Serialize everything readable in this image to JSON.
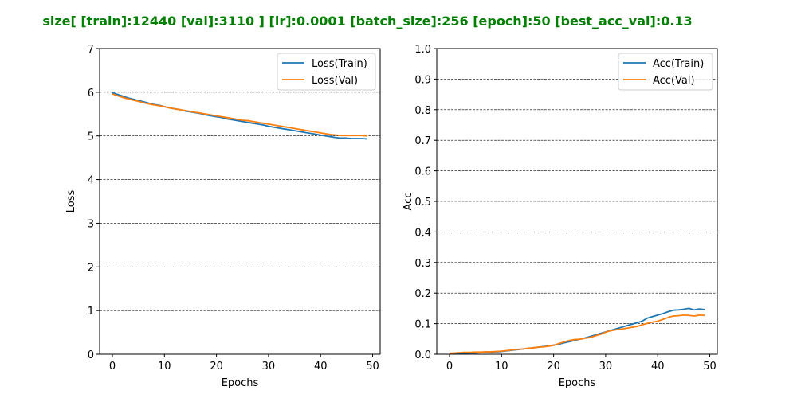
{
  "suptitle": "size[ [train]:12440  [val]:3110 ]  [lr]:0.0001  [batch_size]:256  [epoch]:50  [best_acc_val]:0.13",
  "colors": {
    "suptitle": "#008000",
    "train": "#1f77b4",
    "val": "#ff7f0e",
    "grid": "#000000"
  },
  "chart_data": [
    {
      "type": "line",
      "xlabel": "Epochs",
      "ylabel": "Loss",
      "xlim": [
        -2.45,
        51.45
      ],
      "ylim": [
        0,
        7
      ],
      "xticks": [
        0,
        10,
        20,
        30,
        40,
        50
      ],
      "yticks": [
        0,
        1,
        2,
        3,
        4,
        5,
        6,
        7
      ],
      "ytick_labels": [
        "0",
        "1",
        "2",
        "3",
        "4",
        "5",
        "6",
        "7"
      ],
      "grid": "y-dashed",
      "legend_position": "top-right",
      "x": [
        0,
        1,
        2,
        3,
        4,
        5,
        6,
        7,
        8,
        9,
        10,
        11,
        12,
        13,
        14,
        15,
        16,
        17,
        18,
        19,
        20,
        21,
        22,
        23,
        24,
        25,
        26,
        27,
        28,
        29,
        30,
        31,
        32,
        33,
        34,
        35,
        36,
        37,
        38,
        39,
        40,
        41,
        42,
        43,
        44,
        45,
        46,
        47,
        48,
        49
      ],
      "series": [
        {
          "name": "Loss(Train)",
          "color": "#1f77b4",
          "values": [
            5.99,
            5.95,
            5.91,
            5.87,
            5.84,
            5.81,
            5.78,
            5.75,
            5.72,
            5.7,
            5.67,
            5.64,
            5.62,
            5.6,
            5.57,
            5.55,
            5.53,
            5.51,
            5.48,
            5.46,
            5.44,
            5.42,
            5.39,
            5.37,
            5.35,
            5.33,
            5.31,
            5.29,
            5.27,
            5.25,
            5.22,
            5.2,
            5.18,
            5.16,
            5.14,
            5.12,
            5.1,
            5.08,
            5.06,
            5.04,
            5.02,
            5.0,
            4.98,
            4.96,
            4.95,
            4.95,
            4.94,
            4.94,
            4.94,
            4.93
          ]
        },
        {
          "name": "Loss(Val)",
          "color": "#ff7f0e",
          "values": [
            5.96,
            5.92,
            5.88,
            5.85,
            5.82,
            5.79,
            5.76,
            5.73,
            5.71,
            5.69,
            5.67,
            5.64,
            5.62,
            5.6,
            5.58,
            5.56,
            5.54,
            5.52,
            5.5,
            5.48,
            5.46,
            5.44,
            5.42,
            5.4,
            5.38,
            5.36,
            5.35,
            5.33,
            5.31,
            5.29,
            5.27,
            5.25,
            5.23,
            5.21,
            5.19,
            5.17,
            5.15,
            5.13,
            5.11,
            5.09,
            5.07,
            5.05,
            5.03,
            5.02,
            5.01,
            5.01,
            5.01,
            5.01,
            5.01,
            5.0
          ]
        }
      ]
    },
    {
      "type": "line",
      "xlabel": "Epochs",
      "ylabel": "Acc",
      "xlim": [
        -2.45,
        51.45
      ],
      "ylim": [
        0,
        1
      ],
      "xticks": [
        0,
        10,
        20,
        30,
        40,
        50
      ],
      "yticks": [
        0,
        0.1,
        0.2,
        0.3,
        0.4,
        0.5,
        0.6,
        0.7,
        0.8,
        0.9,
        1.0
      ],
      "ytick_labels": [
        "0.0",
        "0.1",
        "0.2",
        "0.3",
        "0.4",
        "0.5",
        "0.6",
        "0.7",
        "0.8",
        "0.9",
        "1.0"
      ],
      "grid": "y-dashed",
      "legend_position": "top-right",
      "x": [
        0,
        1,
        2,
        3,
        4,
        5,
        6,
        7,
        8,
        9,
        10,
        11,
        12,
        13,
        14,
        15,
        16,
        17,
        18,
        19,
        20,
        21,
        22,
        23,
        24,
        25,
        26,
        27,
        28,
        29,
        30,
        31,
        32,
        33,
        34,
        35,
        36,
        37,
        38,
        39,
        40,
        41,
        42,
        43,
        44,
        45,
        46,
        47,
        48,
        49
      ],
      "series": [
        {
          "name": "Acc(Train)",
          "color": "#1f77b4",
          "values": [
            0.001,
            0.002,
            0.003,
            0.003,
            0.004,
            0.004,
            0.005,
            0.006,
            0.007,
            0.008,
            0.009,
            0.011,
            0.013,
            0.015,
            0.017,
            0.019,
            0.021,
            0.023,
            0.025,
            0.027,
            0.03,
            0.033,
            0.037,
            0.041,
            0.045,
            0.049,
            0.053,
            0.058,
            0.063,
            0.068,
            0.073,
            0.078,
            0.083,
            0.088,
            0.093,
            0.098,
            0.103,
            0.108,
            0.118,
            0.123,
            0.128,
            0.133,
            0.139,
            0.144,
            0.145,
            0.147,
            0.15,
            0.145,
            0.148,
            0.146
          ]
        },
        {
          "name": "Acc(Val)",
          "color": "#ff7f0e",
          "values": [
            0.003,
            0.004,
            0.005,
            0.006,
            0.006,
            0.007,
            0.007,
            0.008,
            0.008,
            0.009,
            0.01,
            0.012,
            0.014,
            0.016,
            0.017,
            0.019,
            0.021,
            0.023,
            0.024,
            0.026,
            0.029,
            0.035,
            0.04,
            0.045,
            0.048,
            0.049,
            0.052,
            0.055,
            0.06,
            0.065,
            0.072,
            0.077,
            0.08,
            0.082,
            0.085,
            0.088,
            0.091,
            0.096,
            0.101,
            0.105,
            0.108,
            0.114,
            0.12,
            0.125,
            0.126,
            0.128,
            0.127,
            0.125,
            0.128,
            0.127
          ]
        }
      ]
    }
  ]
}
